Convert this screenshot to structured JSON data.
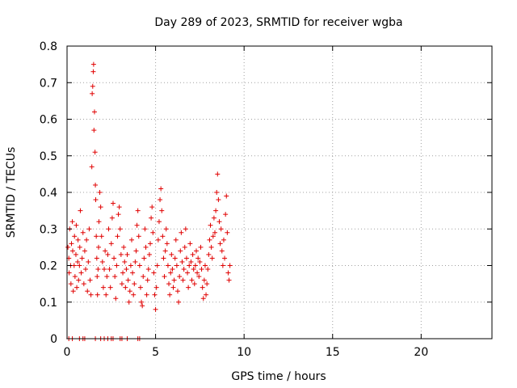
{
  "chart_data": {
    "type": "scatter",
    "title": "Day 289 of 2023, SRMTID for receiver wgba",
    "xlabel": "GPS time / hours",
    "ylabel": "SRMTID / TECUs",
    "xlim": [
      0,
      24
    ],
    "ylim": [
      0,
      0.8
    ],
    "xticks": [
      0,
      5,
      10,
      15,
      20
    ],
    "xtick_labels": [
      "0",
      "5",
      "10",
      "15",
      "20"
    ],
    "yticks": [
      0,
      0.1,
      0.2,
      0.3,
      0.4,
      0.5,
      0.6,
      0.7,
      0.8
    ],
    "ytick_labels": [
      "0",
      "0.1",
      "0.2",
      "0.3",
      "0.4",
      "0.5",
      "0.6",
      "0.7",
      "0.8"
    ],
    "grid": true,
    "marker": "+",
    "color": "#e00000",
    "series": [
      {
        "name": "SRMTID",
        "x": [
          0.05,
          0.1,
          0.12,
          0.15,
          0.2,
          0.22,
          0.25,
          0.3,
          0.32,
          0.35,
          0.4,
          0.42,
          0.45,
          0.5,
          0.52,
          0.55,
          0.6,
          0.62,
          0.65,
          0.7,
          0.72,
          0.75,
          0.8,
          0.85,
          0.9,
          0.95,
          1.0,
          1.05,
          1.1,
          1.15,
          1.2,
          1.25,
          1.3,
          1.35,
          1.4,
          1.42,
          1.45,
          1.48,
          1.5,
          1.52,
          1.55,
          1.58,
          1.6,
          1.62,
          1.65,
          1.68,
          1.7,
          1.72,
          1.75,
          1.78,
          1.8,
          1.85,
          1.9,
          1.95,
          2.0,
          2.05,
          2.1,
          2.15,
          2.2,
          2.25,
          2.3,
          2.35,
          2.4,
          2.45,
          2.5,
          2.55,
          2.6,
          2.65,
          2.7,
          2.75,
          2.8,
          2.85,
          2.9,
          2.95,
          3.0,
          3.05,
          3.1,
          3.15,
          3.2,
          3.25,
          3.3,
          3.35,
          3.4,
          3.45,
          3.5,
          3.55,
          3.6,
          3.65,
          3.7,
          3.75,
          3.8,
          3.85,
          3.9,
          3.95,
          4.0,
          4.05,
          4.1,
          4.15,
          4.2,
          4.25,
          4.3,
          4.35,
          4.4,
          4.45,
          4.5,
          4.55,
          4.6,
          4.65,
          4.7,
          4.75,
          4.8,
          4.85,
          4.9,
          4.95,
          5.0,
          5.05,
          5.1,
          5.15,
          5.2,
          5.25,
          5.3,
          5.35,
          5.4,
          5.45,
          5.5,
          5.55,
          5.6,
          5.65,
          5.7,
          5.75,
          5.8,
          5.85,
          5.9,
          5.95,
          6.0,
          6.05,
          6.1,
          6.15,
          6.2,
          6.25,
          6.3,
          6.35,
          6.4,
          6.45,
          6.5,
          6.55,
          6.6,
          6.65,
          6.7,
          6.75,
          6.8,
          6.85,
          6.9,
          6.95,
          7.0,
          7.05,
          7.1,
          7.15,
          7.2,
          7.25,
          7.3,
          7.35,
          7.4,
          7.45,
          7.5,
          7.55,
          7.6,
          7.65,
          7.7,
          7.75,
          7.8,
          7.85,
          7.9,
          7.95,
          8.0,
          8.05,
          8.1,
          8.15,
          8.2,
          8.25,
          8.3,
          8.35,
          8.4,
          8.45,
          8.5,
          8.55,
          8.6,
          8.65,
          8.7,
          8.75,
          8.8,
          8.85,
          8.9,
          8.95,
          9.0,
          9.05,
          9.1,
          9.15,
          9.2,
          0.1,
          0.3,
          0.7,
          0.9,
          1.0,
          1.6,
          1.9,
          2.1,
          2.3,
          2.5,
          2.6,
          3.0,
          3.1,
          3.4,
          4.0,
          4.1
        ],
        "y": [
          0.25,
          0.22,
          0.18,
          0.3,
          0.2,
          0.15,
          0.26,
          0.32,
          0.24,
          0.13,
          0.2,
          0.28,
          0.17,
          0.23,
          0.31,
          0.14,
          0.21,
          0.27,
          0.16,
          0.2,
          0.25,
          0.35,
          0.18,
          0.22,
          0.29,
          0.15,
          0.24,
          0.19,
          0.27,
          0.13,
          0.21,
          0.3,
          0.16,
          0.12,
          0.47,
          0.67,
          0.69,
          0.73,
          0.75,
          0.57,
          0.62,
          0.51,
          0.42,
          0.38,
          0.28,
          0.22,
          0.17,
          0.12,
          0.19,
          0.25,
          0.32,
          0.4,
          0.36,
          0.28,
          0.21,
          0.14,
          0.19,
          0.24,
          0.12,
          0.17,
          0.23,
          0.3,
          0.19,
          0.14,
          0.26,
          0.33,
          0.37,
          0.22,
          0.17,
          0.11,
          0.2,
          0.28,
          0.34,
          0.36,
          0.3,
          0.23,
          0.15,
          0.18,
          0.25,
          0.21,
          0.14,
          0.19,
          0.23,
          0.16,
          0.1,
          0.13,
          0.2,
          0.27,
          0.18,
          0.12,
          0.15,
          0.21,
          0.24,
          0.31,
          0.35,
          0.28,
          0.2,
          0.14,
          0.1,
          0.09,
          0.17,
          0.22,
          0.3,
          0.25,
          0.12,
          0.16,
          0.19,
          0.23,
          0.26,
          0.33,
          0.36,
          0.29,
          0.18,
          0.12,
          0.08,
          0.14,
          0.2,
          0.27,
          0.32,
          0.38,
          0.41,
          0.35,
          0.28,
          0.22,
          0.17,
          0.24,
          0.3,
          0.26,
          0.2,
          0.15,
          0.12,
          0.18,
          0.23,
          0.19,
          0.14,
          0.16,
          0.22,
          0.27,
          0.2,
          0.13,
          0.1,
          0.17,
          0.24,
          0.29,
          0.21,
          0.16,
          0.19,
          0.25,
          0.3,
          0.22,
          0.18,
          0.14,
          0.2,
          0.26,
          0.21,
          0.16,
          0.23,
          0.19,
          0.15,
          0.2,
          0.24,
          0.18,
          0.22,
          0.17,
          0.21,
          0.25,
          0.19,
          0.14,
          0.11,
          0.16,
          0.2,
          0.12,
          0.15,
          0.19,
          0.23,
          0.27,
          0.31,
          0.25,
          0.22,
          0.28,
          0.33,
          0.29,
          0.35,
          0.4,
          0.45,
          0.38,
          0.32,
          0.26,
          0.3,
          0.24,
          0.2,
          0.27,
          0.22,
          0.34,
          0.39,
          0.29,
          0.18,
          0.16,
          0.2,
          0,
          0,
          0,
          0,
          0,
          0,
          0,
          0,
          0,
          0,
          0,
          0,
          0,
          0,
          0,
          0
        ]
      }
    ]
  }
}
